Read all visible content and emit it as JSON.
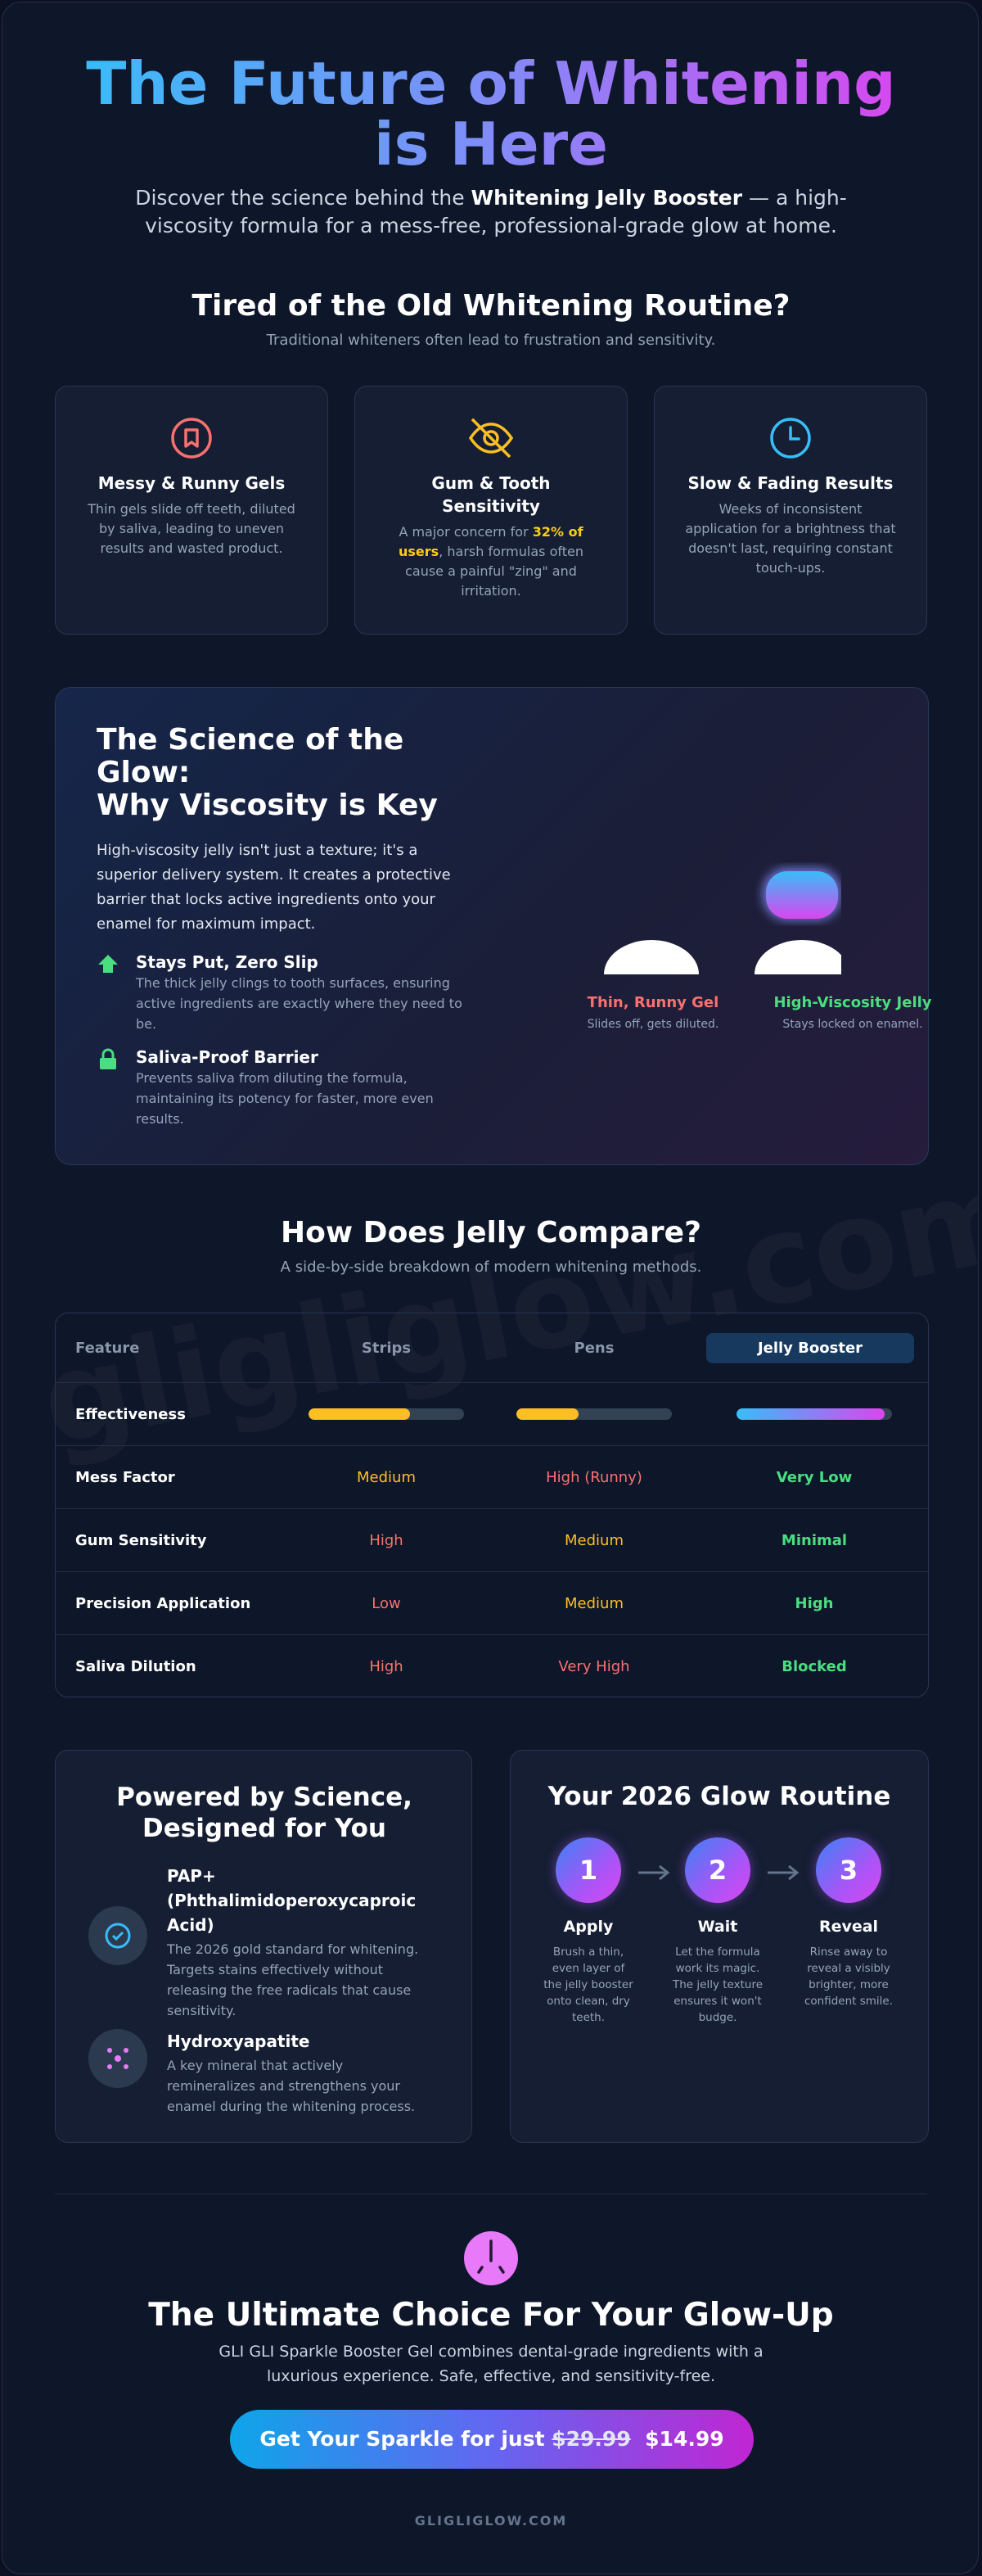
{
  "hero": {
    "title": "The Future of Whitening is Here",
    "subtitle": [
      "Discover the science behind the ",
      "Whitening Jelly Booster",
      " — a high-viscosity formula for a mess-free, professional-grade glow at home."
    ]
  },
  "problems": {
    "title": "Tired of the Old Whitening Routine?",
    "subtitle": "Traditional whiteners often lead to frustration and sensitivity.",
    "cards": [
      {
        "title": "Messy & Runny Gels",
        "text": [
          "Thin gels slide off teeth, diluted by saliva, leading to uneven results and wasted product."
        ]
      },
      {
        "title": "Gum & Tooth Sensitivity",
        "text": [
          "A major concern for ",
          "32% of users",
          ", harsh formulas often cause a painful \"zing\" and irritation."
        ]
      },
      {
        "title": "Slow & Fading Results",
        "text": [
          "Weeks of inconsistent application for a brightness that doesn't last, requiring constant touch-ups."
        ]
      }
    ]
  },
  "science": {
    "title": [
      "The Science of the Glow:",
      "Why Viscosity is Key"
    ],
    "text": "High-viscosity jelly isn't just a texture; it's a superior delivery system. It creates a protective barrier that locks active ingredients onto your enamel for maximum impact.",
    "features": [
      {
        "title": "Stays Put, Zero Slip",
        "text": "The thick jelly clings to tooth surfaces, ensuring active ingredients are exactly where they need to be."
      },
      {
        "title": "Saliva-Proof Barrier",
        "text": "Prevents saliva from diluting the formula, maintaining its potency for faster, more even results."
      }
    ],
    "demo": [
      {
        "title": "Thin, Runny Gel",
        "text": "Slides off, gets diluted."
      },
      {
        "title": "High-Viscosity Jelly",
        "text": "Stays locked on enamel."
      }
    ]
  },
  "comparison": {
    "title": "How Does Jelly Compare?",
    "subtitle": "A side-by-side breakdown of modern whitening methods.",
    "watermark": "gligliglow.com",
    "columns": [
      "Feature",
      "Strips",
      "Pens",
      "Jelly Booster"
    ],
    "effectiveness": {
      "label": "Effectiveness",
      "values": [
        65,
        40,
        95
      ]
    },
    "rows": [
      [
        "Mess Factor",
        "Medium",
        "High (Runny)",
        "Very Low"
      ],
      [
        "Gum Sensitivity",
        "High",
        "Medium",
        "Minimal"
      ],
      [
        "Precision Application",
        "Low",
        "Medium",
        "High"
      ],
      [
        "Saliva Dilution",
        "High",
        "Very High",
        "Blocked"
      ]
    ]
  },
  "ingredients": {
    "title": "Powered by Science, Designed for You",
    "items": [
      {
        "name": "PAP+ (Phthalimidoperoxycaproic Acid)",
        "text": "The 2026 gold standard for whitening. Targets stains effectively without releasing the free radicals that cause sensitivity."
      },
      {
        "name": "Hydroxyapatite",
        "text": "A key mineral that actively remineralizes and strengthens your enamel during the whitening process."
      }
    ]
  },
  "routine": {
    "title": "Your 2026 Glow Routine",
    "steps": [
      {
        "number": 1,
        "title": "Apply",
        "text": "Brush a thin, even layer of the jelly booster onto clean, dry teeth."
      },
      {
        "number": 2,
        "title": "Wait",
        "text": "Let the formula work its magic. The jelly texture ensures it won't budge."
      },
      {
        "number": 3,
        "title": "Reveal",
        "text": "Rinse away to reveal a visibly brighter, more confident smile."
      }
    ]
  },
  "cta": {
    "title": "The Ultimate Choice For Your Glow-Up",
    "text": "GLI GLI Sparkle Booster Gel combines dental-grade ingredients with a luxurious experience. Safe, effective, and sensitivity-free.",
    "button": {
      "prefix": "Get Your Sparkle for just",
      "old_price": "$29.99",
      "price": "$14.99"
    },
    "footer": "GLIGLIGLOW.COM"
  }
}
